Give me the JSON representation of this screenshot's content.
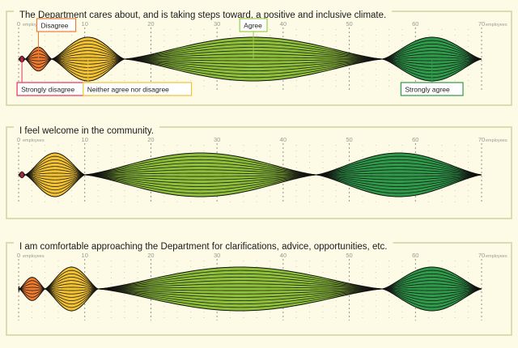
{
  "page": {
    "background": "#fdfbe6",
    "panel_border": "#dcdcb4"
  },
  "chart_data": {
    "type": "violin-lens",
    "axis": {
      "min": 0,
      "max": 70,
      "major_ticks": [
        0,
        10,
        20,
        30,
        40,
        50,
        60,
        70
      ],
      "unit_label": "employees"
    },
    "categories": [
      "Strongly disagree",
      "Disagree",
      "Neither agree nor disagree",
      "Agree",
      "Strongly agree"
    ],
    "category_colors": [
      "#e8305a",
      "#f07c30",
      "#f2c233",
      "#8ec03a",
      "#2e9a4a"
    ],
    "category_label_borders": [
      "#e8305a",
      "#f07c30",
      "#f2c233",
      "#9ccf47",
      "#2e9a4a"
    ],
    "panels": [
      {
        "title": "The Department cares about, and is taking steps toward, a positive and inclusive climate.",
        "show_category_labels": true,
        "segments": [
          {
            "category": "Strongly disagree",
            "start": 0,
            "end": 1
          },
          {
            "category": "Disagree",
            "start": 1,
            "end": 5
          },
          {
            "category": "Neither agree nor disagree",
            "start": 5,
            "end": 16
          },
          {
            "category": "Agree",
            "start": 16,
            "end": 55
          },
          {
            "category": "Strongly agree",
            "start": 55,
            "end": 70
          }
        ]
      },
      {
        "title": "I feel welcome in the community.",
        "show_category_labels": false,
        "segments": [
          {
            "category": "Strongly disagree",
            "start": 0,
            "end": 1
          },
          {
            "category": "Neither agree nor disagree",
            "start": 1,
            "end": 10
          },
          {
            "category": "Agree",
            "start": 10,
            "end": 45
          },
          {
            "category": "Strongly agree",
            "start": 45,
            "end": 70
          }
        ]
      },
      {
        "title": "I am comfortable approaching the Department for clarifications, advice, opportunities, etc.",
        "show_category_labels": false,
        "segments": [
          {
            "category": "Strongly disagree",
            "start": 0,
            "end": 0.1
          },
          {
            "category": "Disagree",
            "start": 0.1,
            "end": 4
          },
          {
            "category": "Neither agree nor disagree",
            "start": 4,
            "end": 12
          },
          {
            "category": "Agree",
            "start": 12,
            "end": 55
          },
          {
            "category": "Strongly agree",
            "start": 55,
            "end": 70
          }
        ]
      }
    ]
  }
}
